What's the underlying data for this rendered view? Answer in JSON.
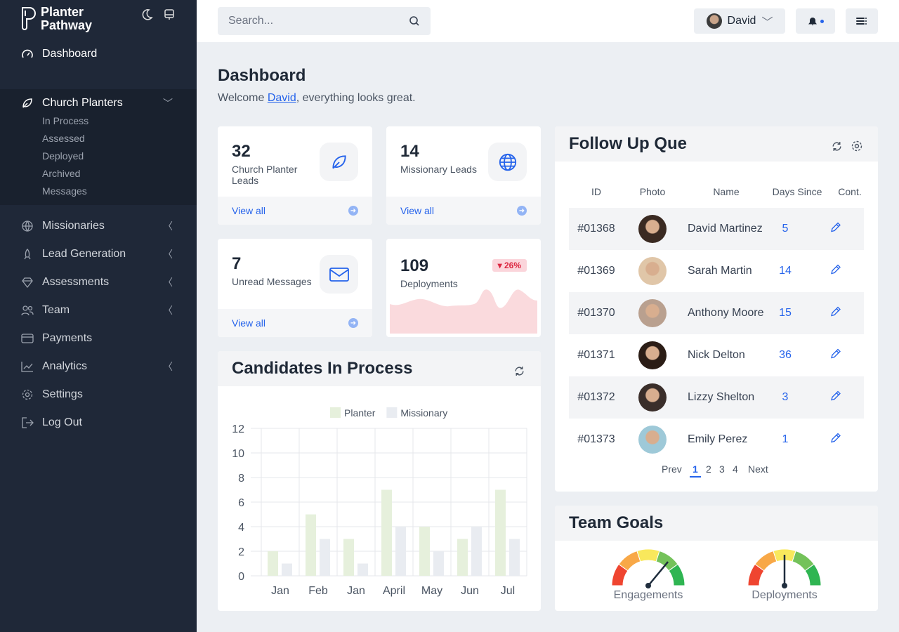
{
  "sidebar": {
    "brand": [
      "Planter",
      "Pathway"
    ],
    "dashboard": "Dashboard",
    "church_planters": "Church Planters",
    "sub_items": [
      "In Process",
      "Assessed",
      "Deployed",
      "Archived",
      "Messages"
    ],
    "items": [
      {
        "label": "Missionaries",
        "icon": "globe-icon",
        "chev": true
      },
      {
        "label": "Lead Generation",
        "icon": "rocket-icon",
        "chev": true
      },
      {
        "label": "Assessments",
        "icon": "diamond-icon",
        "chev": true
      },
      {
        "label": "Team",
        "icon": "users-icon",
        "chev": true
      },
      {
        "label": "Payments",
        "icon": "credit-card-icon",
        "chev": false
      },
      {
        "label": "Analytics",
        "icon": "chart-line-icon",
        "chev": true
      },
      {
        "label": "Settings",
        "icon": "gear-icon",
        "chev": false
      },
      {
        "label": "Log Out",
        "icon": "logout-icon",
        "chev": false
      }
    ]
  },
  "topbar": {
    "search_placeholder": "Search...",
    "user": "David"
  },
  "page": {
    "title": "Dashboard",
    "welcome_pre": "Welcome ",
    "welcome_name": "David",
    "welcome_post": ", everything looks great."
  },
  "stats": [
    {
      "value": "32",
      "label": "Church Planter Leads",
      "link": "View all"
    },
    {
      "value": "14",
      "label": "Missionary Leads",
      "link": "View all"
    },
    {
      "value": "7",
      "label": "Unread Messages",
      "link": "View all"
    },
    {
      "value": "109",
      "label": "Deployments",
      "badge": "▾ 26%"
    }
  ],
  "followup": {
    "title": "Follow Up Que",
    "columns": [
      "ID",
      "Photo",
      "Name",
      "Days Since",
      "Cont."
    ],
    "rows": [
      {
        "id": "#01368",
        "name": "David Martinez",
        "days": "5"
      },
      {
        "id": "#01369",
        "name": "Sarah Martin",
        "days": "14"
      },
      {
        "id": "#01370",
        "name": "Anthony Moore",
        "days": "15"
      },
      {
        "id": "#01371",
        "name": "Nick Delton",
        "days": "36"
      },
      {
        "id": "#01372",
        "name": "Lizzy Shelton",
        "days": "3"
      },
      {
        "id": "#01373",
        "name": "Emily Perez",
        "days": "1"
      }
    ],
    "pagination": {
      "prev": "Prev",
      "pages": [
        "1",
        "2",
        "3",
        "4"
      ],
      "current": "1",
      "next": "Next"
    }
  },
  "goals": {
    "title": "Team Goals",
    "gauges": [
      {
        "label": "Engagements",
        "value": 0.72
      },
      {
        "label": "Deployments",
        "value": 0.5
      }
    ]
  },
  "candidates": {
    "title": "Candidates In Process"
  },
  "chart_data": {
    "type": "bar",
    "categories": [
      "Jan",
      "Feb",
      "Jan",
      "April",
      "May",
      "Jun",
      "Jul"
    ],
    "series": [
      {
        "name": "Planter",
        "values": [
          2,
          5,
          3,
          7,
          4,
          3,
          7
        ],
        "color": "#e6f0dc"
      },
      {
        "name": "Missionary",
        "values": [
          1,
          3,
          1,
          4,
          2,
          4,
          3
        ],
        "color": "#e9ecf1"
      }
    ],
    "yticks": [
      "0",
      "2",
      "4",
      "6",
      "8",
      "10",
      "12"
    ],
    "ylim": [
      0,
      12
    ],
    "grid": true,
    "legend": "top"
  },
  "colors": {
    "accent": "#2563eb",
    "sidebar": "#1f2838",
    "badge": "#fbd5db"
  }
}
